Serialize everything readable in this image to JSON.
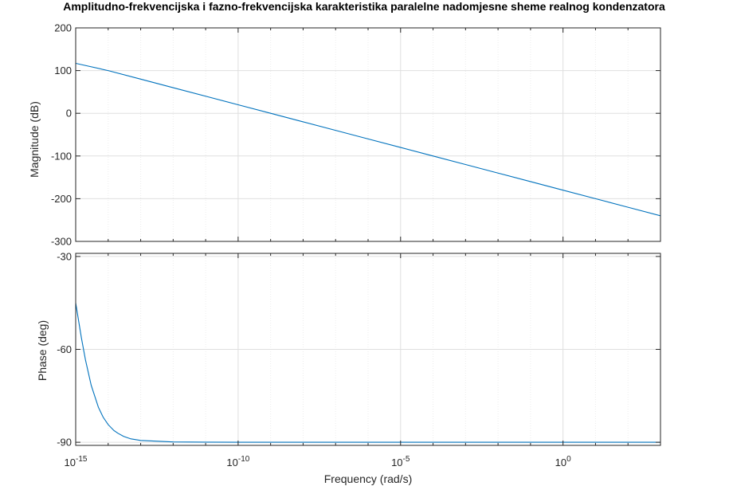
{
  "title": "Amplitudno-frekvencijska i fazno-frekvencijska karakteristika paralelne nadomjesne sheme realnog kondenzatora",
  "xlabel": "Frequency  (rad/s)",
  "colors": {
    "line": "#0072BD",
    "axes": "#262626",
    "grid": "#dfdfdf",
    "minor_grid": "#ececec"
  },
  "chart_data": [
    {
      "type": "line",
      "name": "magnitude",
      "xscale": "log",
      "xlim": [
        1e-15,
        1000.0
      ],
      "ylim": [
        -300,
        200
      ],
      "yticks": [
        200,
        100,
        0,
        -100,
        -200,
        -300
      ],
      "ytick_labels": [
        "200",
        "100",
        "0",
        "-100",
        "-200",
        "-300"
      ],
      "ylabel": "Magnitude (dB)",
      "grid": true,
      "series": [
        {
          "x": [
            1e-15,
            1e-14,
            1e-13,
            1e-12,
            1e-11,
            1e-10,
            1e-09,
            1e-08,
            1e-07,
            1e-06,
            1e-05,
            0.0001,
            0.001,
            0.01,
            0.1,
            1,
            10,
            100,
            1000
          ],
          "y": [
            117,
            100,
            80,
            60,
            40,
            20,
            0,
            -20,
            -40,
            -60,
            -80,
            -100,
            -120,
            -140,
            -160,
            -180,
            -200,
            -220,
            -240
          ]
        }
      ]
    },
    {
      "type": "line",
      "name": "phase",
      "xscale": "log",
      "xlim": [
        1e-15,
        1000.0
      ],
      "ylim": [
        -91,
        -29
      ],
      "yticks": [
        -30,
        -60,
        -90
      ],
      "ytick_labels": [
        "-30",
        "-60",
        "-90"
      ],
      "ylabel": "Phase (deg)",
      "grid": true,
      "series": [
        {
          "x": [
            1e-15,
            1.5e-15,
            2e-15,
            3e-15,
            5e-15,
            7e-15,
            1e-14,
            1.5e-14,
            2e-14,
            3e-14,
            5e-14,
            1e-13,
            1e-12,
            1e-10,
            1e-05,
            1,
            1000
          ],
          "y": [
            -45,
            -56.3,
            -63.4,
            -71.6,
            -78.7,
            -81.9,
            -84.3,
            -86.2,
            -87.1,
            -88.1,
            -88.9,
            -89.4,
            -89.9,
            -90,
            -90,
            -90,
            -90
          ]
        }
      ]
    }
  ],
  "xticks": [
    {
      "value": 1e-15,
      "base": "10",
      "exp": "-15"
    },
    {
      "value": 1e-10,
      "base": "10",
      "exp": "-10"
    },
    {
      "value": 1e-05,
      "base": "10",
      "exp": "-5"
    },
    {
      "value": 1,
      "base": "10",
      "exp": "0"
    }
  ]
}
